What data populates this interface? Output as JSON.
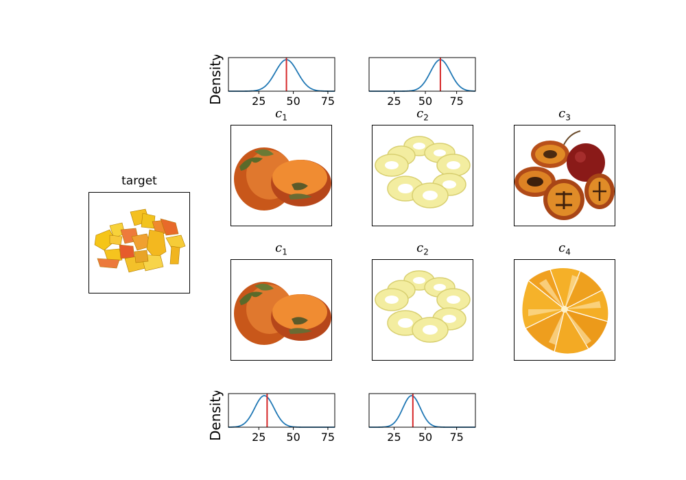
{
  "target": {
    "title": "target"
  },
  "rows": [
    {
      "panels": [
        {
          "label": "c",
          "sub": "1",
          "image": "persimmon-halves"
        },
        {
          "label": "c",
          "sub": "2",
          "image": "pineapple-rings"
        },
        {
          "label": "c",
          "sub": "3",
          "image": "tamarillo-halves"
        }
      ]
    },
    {
      "panels": [
        {
          "label": "c",
          "sub": "1",
          "image": "persimmon-halves"
        },
        {
          "label": "c",
          "sub": "2",
          "image": "pineapple-rings"
        },
        {
          "label": "c",
          "sub": "4",
          "image": "orange-segments"
        }
      ]
    }
  ],
  "chart_data": [
    {
      "type": "line",
      "ylabel": "Density",
      "xlim": [
        3,
        80
      ],
      "xticks": [
        25,
        50,
        75
      ],
      "series": [
        {
          "mean": 45,
          "sd": 8,
          "color": "#1f77b4"
        }
      ],
      "marker": {
        "x": 45,
        "color": "#d62728"
      }
    },
    {
      "type": "line",
      "ylabel": "",
      "xlim": [
        5,
        90
      ],
      "xticks": [
        25,
        50,
        75
      ],
      "series": [
        {
          "mean": 62,
          "sd": 8,
          "color": "#1f77b4"
        }
      ],
      "marker": {
        "x": 62,
        "color": "#d62728"
      }
    },
    {
      "type": "line",
      "ylabel": "Density",
      "xlim": [
        3,
        80
      ],
      "xticks": [
        25,
        50,
        75
      ],
      "series": [
        {
          "mean": 29,
          "sd": 7,
          "color": "#1f77b4"
        }
      ],
      "marker": {
        "x": 31,
        "color": "#d62728"
      }
    },
    {
      "type": "line",
      "ylabel": "",
      "xlim": [
        5,
        90
      ],
      "xticks": [
        25,
        50,
        75
      ],
      "series": [
        {
          "mean": 39,
          "sd": 7,
          "color": "#1f77b4"
        }
      ],
      "marker": {
        "x": 40,
        "color": "#d62728"
      }
    }
  ]
}
